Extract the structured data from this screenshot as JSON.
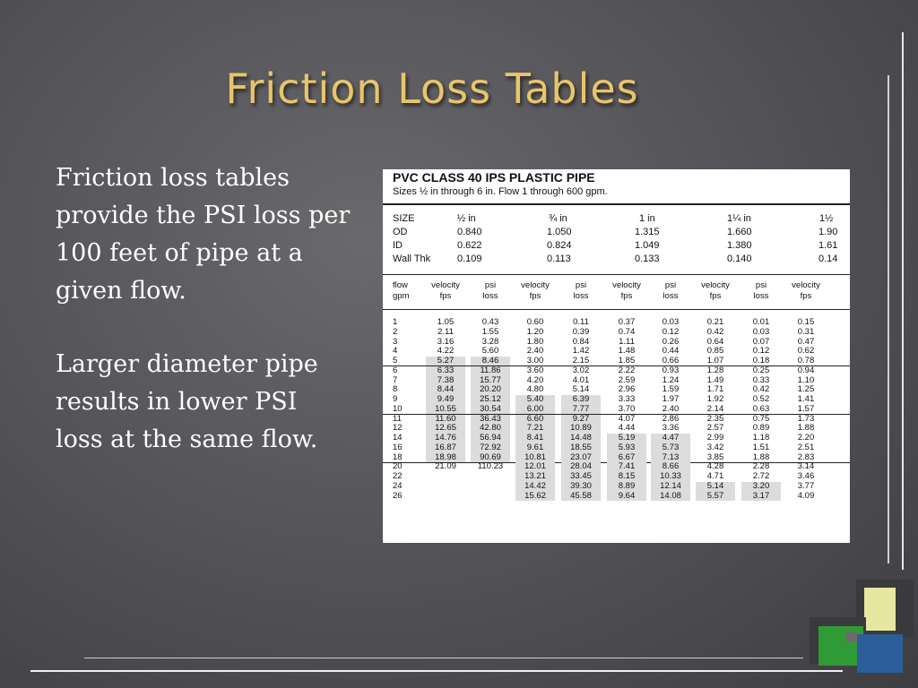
{
  "slide": {
    "title": "Friction Loss Tables",
    "paragraphs": [
      "Friction loss tables provide the PSI loss per 100 feet of pipe at a given flow.",
      "Larger diameter pipe results in lower PSI loss at the same flow."
    ]
  },
  "table": {
    "title": "PVC CLASS 40 IPS PLASTIC PIPE",
    "subtitle": "Sizes ½ in through 6 in. Flow 1 through 600 gpm.",
    "spec_labels": [
      "SIZE",
      "OD",
      "ID",
      "Wall Thk"
    ],
    "sizes": [
      {
        "size": "½ in",
        "od": "0.840",
        "id": "0.622",
        "wall": "0.109"
      },
      {
        "size": "¾ in",
        "od": "1.050",
        "id": "0.824",
        "wall": "0.113"
      },
      {
        "size": "1 in",
        "od": "1.315",
        "id": "1.049",
        "wall": "0.133"
      },
      {
        "size": "1¼ in",
        "od": "1.660",
        "id": "1.380",
        "wall": "0.140"
      },
      {
        "size": "1½",
        "od": "1.90",
        "id": "1.61",
        "wall": "0.14"
      }
    ],
    "column_headers": [
      {
        "l1": "flow",
        "l2": "gpm"
      },
      {
        "l1": "velocity",
        "l2": "fps"
      },
      {
        "l1": "psi",
        "l2": "loss"
      },
      {
        "l1": "velocity",
        "l2": "fps"
      },
      {
        "l1": "psi",
        "l2": "loss"
      },
      {
        "l1": "velocity",
        "l2": "fps"
      },
      {
        "l1": "psi",
        "l2": "loss"
      },
      {
        "l1": "velocity",
        "l2": "fps"
      },
      {
        "l1": "psi",
        "l2": "loss"
      },
      {
        "l1": "velocity",
        "l2": "fps"
      }
    ],
    "rows": [
      [
        "1",
        "1.05",
        "0.43",
        "0.60",
        "0.11",
        "0.37",
        "0.03",
        "0.21",
        "0.01",
        "0.15"
      ],
      [
        "2",
        "2.11",
        "1.55",
        "1.20",
        "0.39",
        "0.74",
        "0.12",
        "0.42",
        "0.03",
        "0.31"
      ],
      [
        "3",
        "3.16",
        "3.28",
        "1.80",
        "0.84",
        "1.11",
        "0.26",
        "0.64",
        "0.07",
        "0.47"
      ],
      [
        "4",
        "4.22",
        "5.60",
        "2.40",
        "1.42",
        "1.48",
        "0.44",
        "0.85",
        "0.12",
        "0.62"
      ],
      [
        "5",
        "5.27",
        "8.46",
        "3.00",
        "2.15",
        "1.85",
        "0.66",
        "1.07",
        "0.18",
        "0.78"
      ],
      [
        "6",
        "6.33",
        "11.86",
        "3.60",
        "3.02",
        "2.22",
        "0.93",
        "1.28",
        "0.25",
        "0.94"
      ],
      [
        "7",
        "7.38",
        "15.77",
        "4.20",
        "4.01",
        "2.59",
        "1.24",
        "1.49",
        "0.33",
        "1.10"
      ],
      [
        "8",
        "8.44",
        "20.20",
        "4.80",
        "5.14",
        "2.96",
        "1.59",
        "1.71",
        "0.42",
        "1.25"
      ],
      [
        "9",
        "9.49",
        "25.12",
        "5.40",
        "6.39",
        "3.33",
        "1.97",
        "1.92",
        "0.52",
        "1.41"
      ],
      [
        "10",
        "10.55",
        "30.54",
        "6.00",
        "7.77",
        "3.70",
        "2.40",
        "2.14",
        "0.63",
        "1.57"
      ],
      [
        "11",
        "11.60",
        "36.43",
        "6.60",
        "9.27",
        "4.07",
        "2.86",
        "2.35",
        "0.75",
        "1.73"
      ],
      [
        "12",
        "12.65",
        "42.80",
        "7.21",
        "10.89",
        "4.44",
        "3.36",
        "2.57",
        "0.89",
        "1.88"
      ],
      [
        "14",
        "14.76",
        "56.94",
        "8.41",
        "14.48",
        "5.19",
        "4.47",
        "2.99",
        "1.18",
        "2.20"
      ],
      [
        "16",
        "16.87",
        "72.92",
        "9.61",
        "18.55",
        "5.93",
        "5.73",
        "3.42",
        "1.51",
        "2.51"
      ],
      [
        "18",
        "18.98",
        "90.69",
        "10.81",
        "23.07",
        "6.67",
        "7.13",
        "3.85",
        "1.88",
        "2.83"
      ],
      [
        "20",
        "21.09",
        "110.23",
        "12.01",
        "28.04",
        "7.41",
        "8.66",
        "4.28",
        "2.28",
        "3.14"
      ],
      [
        "22",
        "",
        "",
        "13.21",
        "33.45",
        "8.15",
        "10.33",
        "4.71",
        "2.72",
        "3.46"
      ],
      [
        "24",
        "",
        "",
        "14.42",
        "39.30",
        "8.89",
        "12.14",
        "5.14",
        "3.20",
        "3.77"
      ],
      [
        "26",
        "",
        "",
        "15.62",
        "45.58",
        "9.64",
        "14.08",
        "5.57",
        "3.17",
        "4.09"
      ]
    ],
    "shaded": [
      [
        4,
        1
      ],
      [
        4,
        2
      ],
      [
        5,
        1
      ],
      [
        5,
        2
      ],
      [
        6,
        1
      ],
      [
        6,
        2
      ],
      [
        7,
        1
      ],
      [
        7,
        2
      ],
      [
        8,
        1
      ],
      [
        8,
        2
      ],
      [
        9,
        1
      ],
      [
        9,
        2
      ],
      [
        10,
        1
      ],
      [
        10,
        2
      ],
      [
        11,
        1
      ],
      [
        11,
        2
      ],
      [
        12,
        1
      ],
      [
        12,
        2
      ],
      [
        13,
        1
      ],
      [
        13,
        2
      ],
      [
        14,
        1
      ],
      [
        14,
        2
      ],
      [
        8,
        3
      ],
      [
        8,
        4
      ],
      [
        9,
        3
      ],
      [
        9,
        4
      ],
      [
        10,
        3
      ],
      [
        10,
        4
      ],
      [
        11,
        3
      ],
      [
        11,
        4
      ],
      [
        12,
        3
      ],
      [
        12,
        4
      ],
      [
        13,
        3
      ],
      [
        13,
        4
      ],
      [
        14,
        3
      ],
      [
        14,
        4
      ],
      [
        15,
        3
      ],
      [
        15,
        4
      ],
      [
        16,
        3
      ],
      [
        16,
        4
      ],
      [
        17,
        3
      ],
      [
        17,
        4
      ],
      [
        18,
        3
      ],
      [
        18,
        4
      ],
      [
        12,
        5
      ],
      [
        12,
        6
      ],
      [
        13,
        5
      ],
      [
        13,
        6
      ],
      [
        14,
        5
      ],
      [
        14,
        6
      ],
      [
        15,
        5
      ],
      [
        15,
        6
      ],
      [
        16,
        5
      ],
      [
        16,
        6
      ],
      [
        17,
        5
      ],
      [
        17,
        6
      ],
      [
        18,
        5
      ],
      [
        18,
        6
      ],
      [
        17,
        7
      ],
      [
        17,
        8
      ],
      [
        18,
        7
      ],
      [
        18,
        8
      ]
    ],
    "group_breaks_after": [
      4,
      9,
      14
    ]
  }
}
